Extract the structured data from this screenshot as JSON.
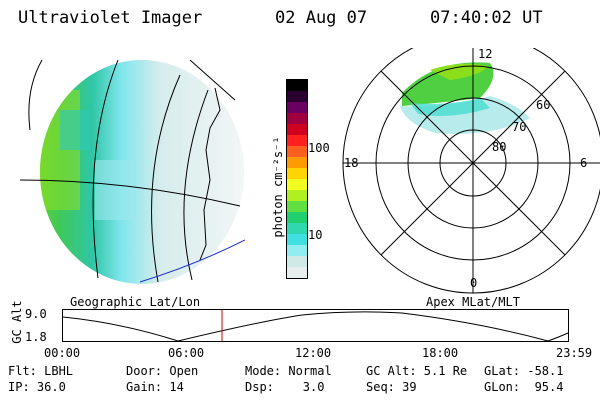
{
  "header": {
    "instrument": "Ultraviolet Imager",
    "date": "02 Aug 07",
    "time": "07:40:02 UT"
  },
  "map_left": {
    "caption": "Geographic Lat/Lon"
  },
  "colorbar": {
    "unit_label": "photon cm⁻²s⁻¹",
    "tick_100": "100",
    "tick_10": "10",
    "colors": [
      "#000000",
      "#2a0030",
      "#6a0060",
      "#a00040",
      "#d00020",
      "#ff2020",
      "#ff6020",
      "#ff9a00",
      "#ffd400",
      "#f0ff20",
      "#b0f020",
      "#60e040",
      "#20d070",
      "#30d8b0",
      "#40e0e0",
      "#90eef0",
      "#cfe8e8",
      "#e8eeee"
    ]
  },
  "polar": {
    "caption": "Apex MLat/MLT",
    "mlt_12": "12",
    "mlt_18": "18",
    "mlt_6": "6",
    "mlt_0": "0",
    "lat_60": "60",
    "lat_70": "70",
    "lat_80": "80"
  },
  "orbit": {
    "ylabel": "GC Alt",
    "y_top": "9.0",
    "y_bottom": "1.8",
    "x_ticks": [
      "00:00",
      "06:00",
      "12:00",
      "18:00",
      "23:59"
    ],
    "marker_color": "#d00000"
  },
  "info": {
    "row1": [
      "Flt: LBHL",
      "Door: Open",
      "Mode: Normal",
      "GC Alt: 5.1 Re",
      "GLat: -58.1"
    ],
    "row2": [
      "IP: 36.0",
      "Gain: 14",
      "Dsp:    3.0",
      "Seq: 39",
      "GLon:  95.4"
    ]
  }
}
